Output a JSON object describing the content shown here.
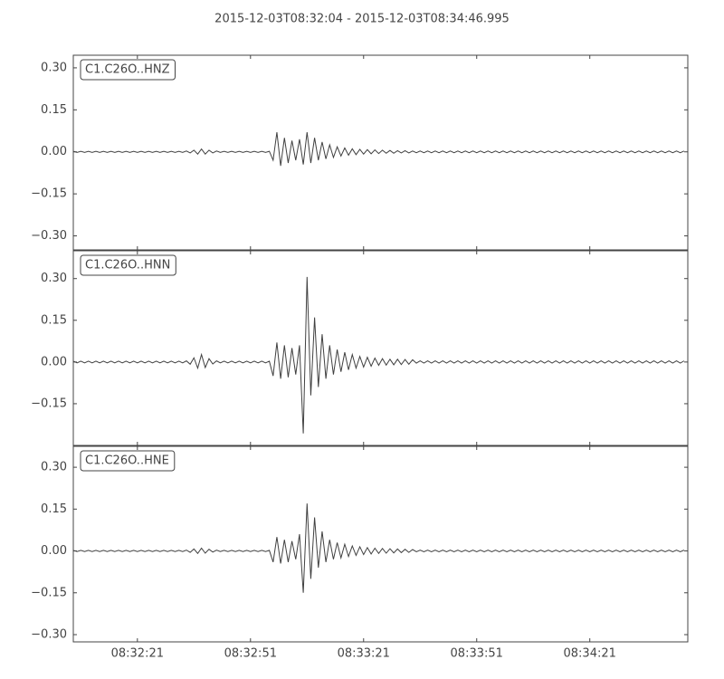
{
  "chart_data": [
    {
      "type": "line",
      "title": "2015-12-03T08:32:04  -  2015-12-03T08:34:46.995",
      "x": [
        0,
        1,
        2,
        3,
        4,
        5,
        6,
        7,
        8,
        9,
        10,
        11,
        12,
        13,
        14,
        15,
        16,
        17,
        18,
        19,
        20,
        21,
        22,
        23,
        24,
        25,
        26,
        27,
        28,
        29,
        30,
        31,
        32,
        33,
        34,
        35,
        36,
        37,
        38,
        39,
        40,
        41,
        42,
        43,
        44,
        45,
        46,
        47,
        48,
        49,
        50,
        51,
        52,
        53,
        54,
        55,
        56,
        57,
        58,
        59,
        60,
        61,
        62,
        63,
        64,
        65,
        66,
        67,
        68,
        69,
        70,
        71,
        72,
        73,
        74,
        75,
        76,
        77,
        78,
        79,
        80,
        81,
        82,
        83,
        84,
        85,
        86,
        87,
        88,
        89,
        90,
        91,
        92,
        93,
        94,
        95,
        96,
        97,
        98,
        99,
        100,
        101,
        102,
        103,
        104,
        105,
        106,
        107,
        108,
        109,
        110,
        111,
        112,
        113,
        114,
        115,
        116,
        117,
        118,
        119,
        120,
        121,
        122,
        123,
        124,
        125,
        126,
        127,
        128,
        129,
        130,
        131,
        132,
        133,
        134,
        135,
        136,
        137,
        138,
        139,
        140,
        141,
        142,
        143,
        144,
        145,
        146,
        147,
        148,
        149,
        150,
        151,
        152,
        153,
        154,
        155,
        156,
        157,
        158,
        159,
        160,
        161,
        162
      ],
      "series": [
        {
          "name": "C1.C26O..HNZ",
          "color": "#404040",
          "values": [
            0.002,
            -0.002,
            0.002,
            -0.002,
            0.002,
            -0.002,
            0.002,
            -0.002,
            0.002,
            -0.002,
            0.002,
            -0.002,
            0.002,
            -0.002,
            0.002,
            -0.002,
            0.002,
            -0.002,
            0.002,
            -0.002,
            0.002,
            -0.002,
            0.002,
            -0.002,
            0.002,
            -0.002,
            0.002,
            -0.002,
            0.002,
            -0.002,
            0.003,
            -0.004,
            0.006,
            -0.008,
            0.01,
            -0.008,
            0.006,
            -0.004,
            0.003,
            -0.002,
            0.002,
            -0.002,
            0.002,
            -0.002,
            0.002,
            -0.002,
            0.002,
            -0.002,
            0.002,
            -0.002,
            0.002,
            -0.002,
            0.002,
            -0.03,
            0.07,
            -0.05,
            0.05,
            -0.04,
            0.04,
            -0.03,
            0.045,
            -0.045,
            0.07,
            -0.04,
            0.05,
            -0.03,
            0.035,
            -0.025,
            0.025,
            -0.02,
            0.018,
            -0.015,
            0.014,
            -0.012,
            0.011,
            -0.01,
            0.009,
            -0.008,
            0.008,
            -0.007,
            0.007,
            -0.006,
            0.006,
            -0.005,
            0.005,
            -0.005,
            0.004,
            -0.004,
            0.004,
            -0.004,
            0.003,
            -0.003,
            0.003,
            -0.003,
            0.003,
            -0.003,
            0.003,
            -0.003,
            0.003,
            -0.003,
            0.003,
            -0.003,
            0.003,
            -0.003,
            0.003,
            -0.003,
            0.003,
            -0.003,
            0.003,
            -0.003,
            0.003,
            -0.003,
            0.003,
            -0.003,
            0.003,
            -0.003,
            0.003,
            -0.003,
            0.003,
            -0.003,
            0.003,
            -0.003,
            0.003,
            -0.003,
            0.003,
            -0.003,
            0.003,
            -0.003,
            0.003,
            -0.003,
            0.003,
            -0.003,
            0.003,
            -0.003,
            0.003,
            -0.003,
            0.003,
            -0.003,
            0.003,
            -0.003,
            0.003,
            -0.003,
            0.003,
            -0.003,
            0.003,
            -0.003,
            0.003,
            -0.003,
            0.003,
            -0.003,
            0.003,
            -0.003,
            0.003,
            -0.003,
            0.003,
            -0.003,
            0.003,
            -0.003,
            0.003,
            -0.003,
            0.003,
            -0.003,
            0.003
          ]
        }
      ],
      "xlim": [
        0,
        162.995
      ],
      "ylim": [
        -0.35,
        0.345
      ],
      "yticks": [
        {
          "value": 0.3,
          "label": "0.30"
        },
        0.15,
        {
          "value": 0,
          "label": "0.00"
        },
        {
          "value": -0.15,
          "label": "−0.15"
        },
        {
          "value": -0.3,
          "label": "−0.30"
        }
      ]
    },
    {
      "type": "line",
      "x": [
        0,
        1,
        2,
        3,
        4,
        5,
        6,
        7,
        8,
        9,
        10,
        11,
        12,
        13,
        14,
        15,
        16,
        17,
        18,
        19,
        20,
        21,
        22,
        23,
        24,
        25,
        26,
        27,
        28,
        29,
        30,
        31,
        32,
        33,
        34,
        35,
        36,
        37,
        38,
        39,
        40,
        41,
        42,
        43,
        44,
        45,
        46,
        47,
        48,
        49,
        50,
        51,
        52,
        53,
        54,
        55,
        56,
        57,
        58,
        59,
        60,
        61,
        62,
        63,
        64,
        65,
        66,
        67,
        68,
        69,
        70,
        71,
        72,
        73,
        74,
        75,
        76,
        77,
        78,
        79,
        80,
        81,
        82,
        83,
        84,
        85,
        86,
        87,
        88,
        89,
        90,
        91,
        92,
        93,
        94,
        95,
        96,
        97,
        98,
        99,
        100,
        101,
        102,
        103,
        104,
        105,
        106,
        107,
        108,
        109,
        110,
        111,
        112,
        113,
        114,
        115,
        116,
        117,
        118,
        119,
        120,
        121,
        122,
        123,
        124,
        125,
        126,
        127,
        128,
        129,
        130,
        131,
        132,
        133,
        134,
        135,
        136,
        137,
        138,
        139,
        140,
        141,
        142,
        143,
        144,
        145,
        146,
        147,
        148,
        149,
        150,
        151,
        152,
        153,
        154,
        155,
        156,
        157,
        158,
        159,
        160,
        161,
        162
      ],
      "series": [
        {
          "name": "C1.C26O..HNN",
          "color": "#404040",
          "values": [
            0.003,
            -0.003,
            0.003,
            -0.003,
            0.003,
            -0.003,
            0.003,
            -0.003,
            0.003,
            -0.003,
            0.003,
            -0.003,
            0.003,
            -0.003,
            0.003,
            -0.003,
            0.003,
            -0.003,
            0.003,
            -0.003,
            0.003,
            -0.003,
            0.003,
            -0.003,
            0.003,
            -0.003,
            0.003,
            -0.003,
            0.003,
            -0.003,
            0.004,
            -0.008,
            0.015,
            -0.022,
            0.027,
            -0.02,
            0.012,
            -0.007,
            0.004,
            -0.003,
            0.003,
            -0.003,
            0.003,
            -0.003,
            0.003,
            -0.003,
            0.003,
            -0.003,
            0.003,
            -0.003,
            0.003,
            -0.003,
            0.003,
            -0.05,
            0.07,
            -0.06,
            0.06,
            -0.055,
            0.05,
            -0.045,
            0.06,
            -0.257,
            0.306,
            -0.12,
            0.16,
            -0.09,
            0.1,
            -0.06,
            0.06,
            -0.045,
            0.045,
            -0.035,
            0.035,
            -0.028,
            0.027,
            -0.022,
            0.02,
            -0.018,
            0.017,
            -0.015,
            0.014,
            -0.012,
            0.012,
            -0.011,
            0.01,
            -0.01,
            0.01,
            -0.009,
            0.009,
            -0.008,
            0.008,
            -0.004,
            0.004,
            -0.004,
            0.004,
            -0.004,
            0.004,
            -0.004,
            0.004,
            -0.004,
            0.004,
            -0.004,
            0.004,
            -0.004,
            0.004,
            -0.004,
            0.004,
            -0.004,
            0.004,
            -0.004,
            0.004,
            -0.004,
            0.004,
            -0.004,
            0.004,
            -0.004,
            0.004,
            -0.004,
            0.004,
            -0.004,
            0.004,
            -0.004,
            0.004,
            -0.004,
            0.004,
            -0.004,
            0.004,
            -0.004,
            0.004,
            -0.004,
            0.004,
            -0.004,
            0.004,
            -0.004,
            0.004,
            -0.004,
            0.004,
            -0.004,
            0.004,
            -0.004,
            0.004,
            -0.004,
            0.004,
            -0.004,
            0.004,
            -0.004,
            0.004,
            -0.004,
            0.004,
            -0.004,
            0.004,
            -0.004,
            0.004,
            -0.004,
            0.004,
            -0.004,
            0.004,
            -0.004,
            0.004,
            -0.004,
            0.004,
            -0.004,
            0.004
          ]
        }
      ],
      "xlim": [
        0,
        162.995
      ],
      "ylim": [
        -0.3,
        0.4
      ],
      "yticks": [
        {
          "value": 0.3,
          "label": "0.30"
        },
        0.15,
        {
          "value": 0,
          "label": "0.00"
        },
        {
          "value": -0.15,
          "label": "−0.15"
        }
      ]
    },
    {
      "type": "line",
      "x": [
        0,
        1,
        2,
        3,
        4,
        5,
        6,
        7,
        8,
        9,
        10,
        11,
        12,
        13,
        14,
        15,
        16,
        17,
        18,
        19,
        20,
        21,
        22,
        23,
        24,
        25,
        26,
        27,
        28,
        29,
        30,
        31,
        32,
        33,
        34,
        35,
        36,
        37,
        38,
        39,
        40,
        41,
        42,
        43,
        44,
        45,
        46,
        47,
        48,
        49,
        50,
        51,
        52,
        53,
        54,
        55,
        56,
        57,
        58,
        59,
        60,
        61,
        62,
        63,
        64,
        65,
        66,
        67,
        68,
        69,
        70,
        71,
        72,
        73,
        74,
        75,
        76,
        77,
        78,
        79,
        80,
        81,
        82,
        83,
        84,
        85,
        86,
        87,
        88,
        89,
        90,
        91,
        92,
        93,
        94,
        95,
        96,
        97,
        98,
        99,
        100,
        101,
        102,
        103,
        104,
        105,
        106,
        107,
        108,
        109,
        110,
        111,
        112,
        113,
        114,
        115,
        116,
        117,
        118,
        119,
        120,
        121,
        122,
        123,
        124,
        125,
        126,
        127,
        128,
        129,
        130,
        131,
        132,
        133,
        134,
        135,
        136,
        137,
        138,
        139,
        140,
        141,
        142,
        143,
        144,
        145,
        146,
        147,
        148,
        149,
        150,
        151,
        152,
        153,
        154,
        155,
        156,
        157,
        158,
        159,
        160,
        161,
        162
      ],
      "series": [
        {
          "name": "C1.C26O..HNE",
          "color": "#404040",
          "values": [
            0.002,
            -0.002,
            0.002,
            -0.002,
            0.002,
            -0.002,
            0.002,
            -0.002,
            0.002,
            -0.002,
            0.002,
            -0.002,
            0.002,
            -0.002,
            0.002,
            -0.002,
            0.002,
            -0.002,
            0.002,
            -0.002,
            0.002,
            -0.002,
            0.002,
            -0.002,
            0.002,
            -0.002,
            0.002,
            -0.002,
            0.002,
            -0.002,
            0.003,
            -0.005,
            0.007,
            -0.009,
            0.01,
            -0.008,
            0.006,
            -0.004,
            0.003,
            -0.002,
            0.002,
            -0.002,
            0.002,
            -0.002,
            0.002,
            -0.002,
            0.002,
            -0.002,
            0.002,
            -0.002,
            0.002,
            -0.002,
            0.002,
            -0.04,
            0.05,
            -0.045,
            0.04,
            -0.04,
            0.035,
            -0.03,
            0.06,
            -0.15,
            0.17,
            -0.1,
            0.12,
            -0.06,
            0.07,
            -0.04,
            0.04,
            -0.03,
            0.03,
            -0.025,
            0.024,
            -0.02,
            0.018,
            -0.016,
            0.015,
            -0.013,
            0.012,
            -0.011,
            0.01,
            -0.009,
            0.009,
            -0.008,
            0.008,
            -0.007,
            0.007,
            -0.006,
            0.006,
            -0.005,
            0.005,
            -0.003,
            0.003,
            -0.003,
            0.003,
            -0.003,
            0.003,
            -0.003,
            0.003,
            -0.003,
            0.003,
            -0.003,
            0.003,
            -0.003,
            0.003,
            -0.003,
            0.003,
            -0.003,
            0.003,
            -0.003,
            0.003,
            -0.003,
            0.003,
            -0.003,
            0.003,
            -0.003,
            0.003,
            -0.003,
            0.003,
            -0.003,
            0.003,
            -0.003,
            0.003,
            -0.003,
            0.003,
            -0.003,
            0.003,
            -0.003,
            0.003,
            -0.003,
            0.003,
            -0.003,
            0.003,
            -0.003,
            0.003,
            -0.003,
            0.003,
            -0.003,
            0.003,
            -0.003,
            0.003,
            -0.003,
            0.003,
            -0.003,
            0.003,
            -0.003,
            0.003,
            -0.003,
            0.003,
            -0.003,
            0.003,
            -0.003,
            0.003,
            -0.003,
            0.003,
            -0.003,
            0.003,
            -0.003,
            0.003,
            -0.003,
            0.003,
            -0.003,
            0.003
          ]
        }
      ],
      "xlim": [
        0,
        162.995
      ],
      "ylim": [
        -0.326,
        0.375
      ],
      "yticks": [
        {
          "value": 0.3,
          "label": "0.30"
        },
        0.15,
        {
          "value": 0,
          "label": "0.00"
        },
        {
          "value": -0.15,
          "label": "−0.15"
        },
        {
          "value": -0.3,
          "label": "−0.30"
        }
      ],
      "xticks": [
        {
          "value": 17,
          "label": "08:32:21"
        },
        {
          "value": 47,
          "label": "08:32:51"
        },
        {
          "value": 77,
          "label": "08:33:21"
        },
        {
          "value": 107,
          "label": "08:33:51"
        },
        {
          "value": 137,
          "label": "08:34:21"
        }
      ]
    }
  ]
}
